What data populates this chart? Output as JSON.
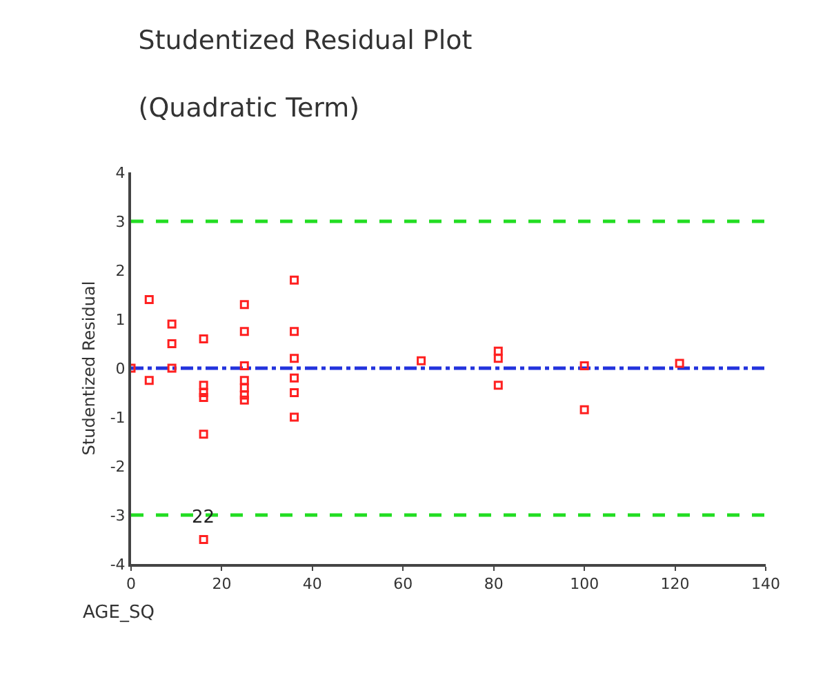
{
  "chart_data": {
    "type": "scatter",
    "title": "Studentized Residual Plot",
    "subtitle": "(Quadratic Term)",
    "xlabel": "AGE_SQ",
    "ylabel": "Studentized Residual",
    "x": [
      0,
      4,
      4,
      9,
      9,
      9,
      16,
      16,
      16,
      16,
      16,
      16,
      25,
      25,
      25,
      25,
      25,
      25,
      25,
      36,
      36,
      36,
      36,
      36,
      36,
      64,
      81,
      81,
      81,
      100,
      100,
      121
    ],
    "series": [
      {
        "color": "#ff2020",
        "values": [
          0,
          1.4,
          -0.25,
          0.9,
          0.5,
          0.0,
          0.6,
          -0.35,
          -0.5,
          -0.6,
          -1.35,
          -3.5,
          1.3,
          0.75,
          0.05,
          -0.25,
          -0.4,
          -0.55,
          -0.65,
          1.8,
          0.75,
          0.2,
          -0.2,
          -0.5,
          -1.0,
          0.15,
          0.35,
          0.2,
          -0.35,
          0.05,
          -0.85,
          0.1
        ]
      }
    ],
    "marker": "square",
    "grid": false,
    "xlim": [
      0,
      140
    ],
    "xticks": [
      0,
      20,
      40,
      60,
      80,
      100,
      120,
      140
    ],
    "ylim": [
      -4,
      4
    ],
    "yticks": [
      -4,
      -3,
      -2,
      -1,
      0,
      1,
      2,
      3,
      4
    ],
    "ref_lines": [
      {
        "axis": "y",
        "value": 3,
        "color": "#22dd22",
        "line_style": "dashed"
      },
      {
        "axis": "y",
        "value": -3,
        "color": "#22dd22",
        "line_style": "dashed"
      },
      {
        "axis": "y",
        "value": 0,
        "color": "#2233dd",
        "line_style": "dashdot"
      }
    ],
    "annotations": [
      {
        "text": "22",
        "x": 16,
        "y": -3.5
      }
    ]
  }
}
